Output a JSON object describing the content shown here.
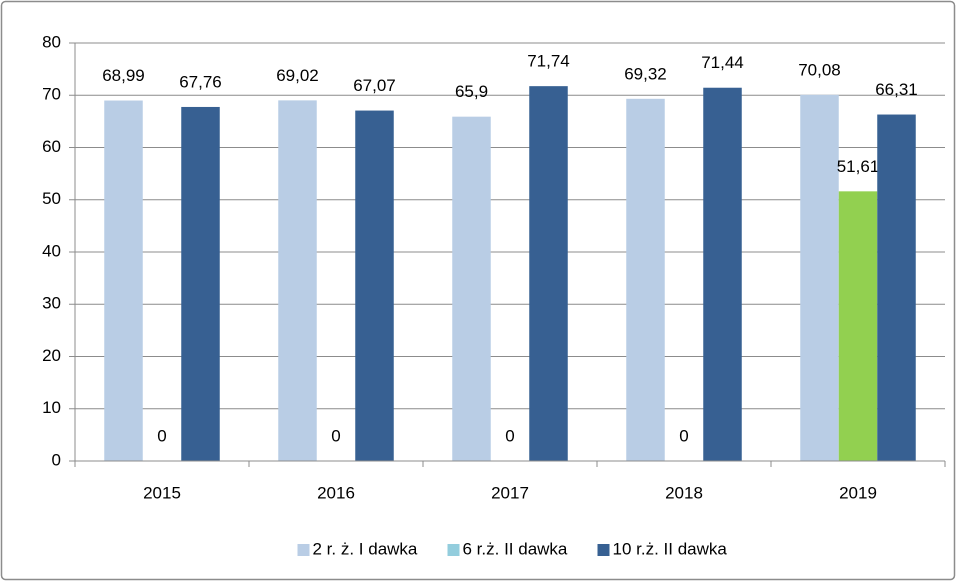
{
  "chart_data": {
    "type": "bar",
    "categories": [
      "2015",
      "2016",
      "2017",
      "2018",
      "2019"
    ],
    "series": [
      {
        "name": "2 r. ż. I dawka",
        "color": "#b9cde5",
        "values": [
          68.99,
          69.02,
          65.9,
          69.32,
          70.08
        ],
        "value_labels": [
          "68,99",
          "69,02",
          "65,9",
          "69,32",
          "70,08"
        ]
      },
      {
        "name": "6 r.ż. II dawka",
        "color": "#93cddd",
        "colors": [
          "#93cddd",
          "#93cddd",
          "#93cddd",
          "#93cddd",
          "#92d050"
        ],
        "values": [
          0,
          0,
          0,
          0,
          51.61
        ],
        "value_labels": [
          "0",
          "0",
          "0",
          "0",
          "51,61"
        ]
      },
      {
        "name": "10 r.ż. II dawka",
        "color": "#376092",
        "values": [
          67.76,
          67.07,
          71.74,
          71.44,
          66.31
        ],
        "value_labels": [
          "67,76",
          "67,07",
          "71,74",
          "71,44",
          "66,31"
        ]
      }
    ],
    "ylim": [
      0,
      80
    ],
    "yticks": [
      0,
      10,
      20,
      30,
      40,
      50,
      60,
      70,
      80
    ],
    "grid": true,
    "legend": "bottom"
  }
}
